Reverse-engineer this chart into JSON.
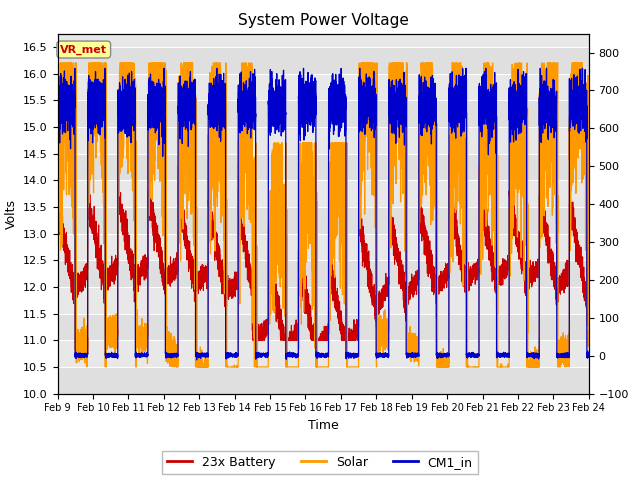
{
  "title": "System Power Voltage",
  "xlabel": "Time",
  "ylabel_left": "Volts",
  "ylim_left": [
    10.0,
    16.75
  ],
  "ylim_right": [
    -100,
    850
  ],
  "yticks_left": [
    10.0,
    10.5,
    11.0,
    11.5,
    12.0,
    12.5,
    13.0,
    13.5,
    14.0,
    14.5,
    15.0,
    15.5,
    16.0,
    16.5
  ],
  "yticks_right": [
    -100,
    0,
    100,
    200,
    300,
    400,
    500,
    600,
    700,
    800
  ],
  "x_tick_labels": [
    "Feb 9",
    "Feb 10",
    "Feb 11",
    "Feb 12",
    "Feb 13",
    "Feb 14",
    "Feb 15",
    "Feb 16",
    "Feb 17",
    "Feb 18",
    "Feb 19",
    "Feb 20",
    "Feb 21",
    "Feb 22",
    "Feb 23",
    "Feb 24"
  ],
  "annotation_text": "VR_met",
  "annotation_color": "#cc0000",
  "annotation_bg": "#ffff99",
  "line_colors": {
    "battery": "#cc0000",
    "solar": "#ff9900",
    "cm1": "#0000cc"
  },
  "legend_labels": [
    "23x Battery",
    "Solar",
    "CM1_in"
  ],
  "plot_bg": "#e8e8e8",
  "fig_bg": "#ffffff",
  "grid_color": "#ffffff"
}
